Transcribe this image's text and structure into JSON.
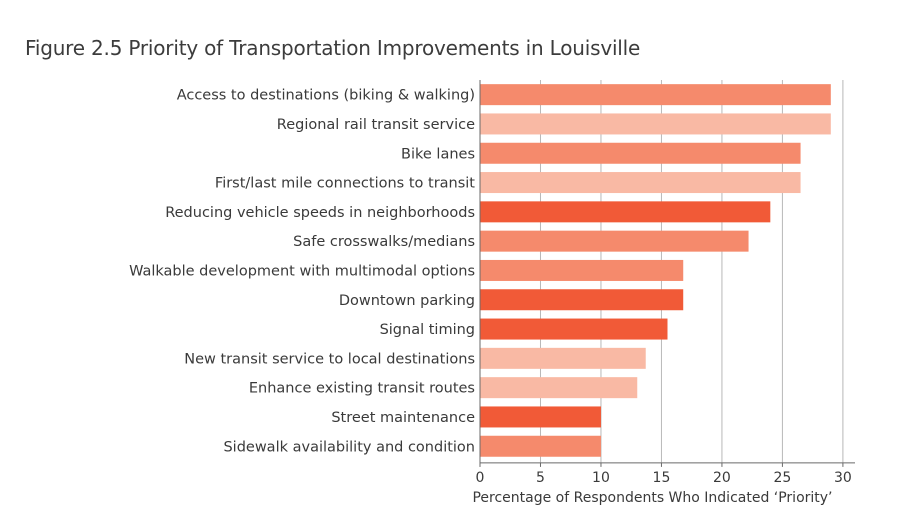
{
  "chart_data": {
    "type": "bar",
    "orientation": "horizontal",
    "title": "Figure 2.5 Priority of Transportation Improvements in Louisville",
    "xlabel": "Percentage of Respondents Who Indicated ‘Priority’",
    "ylabel": "",
    "xlim": [
      0,
      31
    ],
    "xticks": [
      0,
      5,
      10,
      15,
      20,
      25,
      30
    ],
    "grid": "vertical",
    "categories": [
      "Access to destinations (biking & walking)",
      "Regional rail transit service",
      "Bike lanes",
      "First/last mile connections to transit",
      "Reducing vehicle speeds in neighborhoods",
      "Safe crosswalks/medians",
      "Walkable development with multimodal options",
      "Downtown parking",
      "Signal timing",
      "New transit service to local destinations",
      "Enhance existing transit routes",
      "Street maintenance",
      "Sidewalk availability and condition"
    ],
    "values": [
      29,
      29,
      26.5,
      26.5,
      24,
      22.2,
      16.8,
      16.8,
      15.5,
      13.7,
      13,
      10,
      10
    ],
    "colors": [
      "#f58a6c",
      "#f9b9a4",
      "#f58a6c",
      "#f9b9a4",
      "#f15a37",
      "#f58a6c",
      "#f58a6c",
      "#f15a37",
      "#f15a37",
      "#f9b9a4",
      "#f9b9a4",
      "#f15a37",
      "#f58a6c"
    ]
  }
}
